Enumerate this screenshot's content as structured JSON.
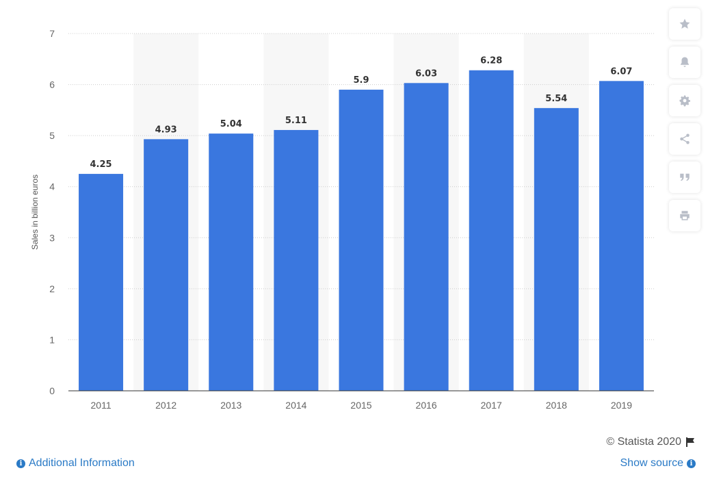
{
  "chart_data": {
    "type": "bar",
    "categories": [
      "2011",
      "2012",
      "2013",
      "2014",
      "2015",
      "2016",
      "2017",
      "2018",
      "2019"
    ],
    "values": [
      4.25,
      4.93,
      5.04,
      5.11,
      5.9,
      6.03,
      6.28,
      5.54,
      6.07
    ],
    "value_labels": [
      "4.25",
      "4.93",
      "5.04",
      "5.11",
      "5.9",
      "6.03",
      "6.28",
      "5.54",
      "6.07"
    ],
    "title": "",
    "xlabel": "",
    "ylabel": "Sales in billion euros",
    "ylim": [
      0,
      7
    ],
    "yticks": [
      "0",
      "1",
      "2",
      "3",
      "4",
      "5",
      "6",
      "7"
    ],
    "grid": true,
    "bar_color": "#3a77df",
    "alt_band_color": "#f7f7f7"
  },
  "toolbar": {
    "items": [
      "star-icon",
      "bell-icon",
      "gear-icon",
      "share-icon",
      "quote-icon",
      "print-icon"
    ]
  },
  "footer": {
    "copyright": "© Statista 2020",
    "additional_info": "Additional Information",
    "show_source": "Show source",
    "link_color": "#2a7ac6"
  }
}
